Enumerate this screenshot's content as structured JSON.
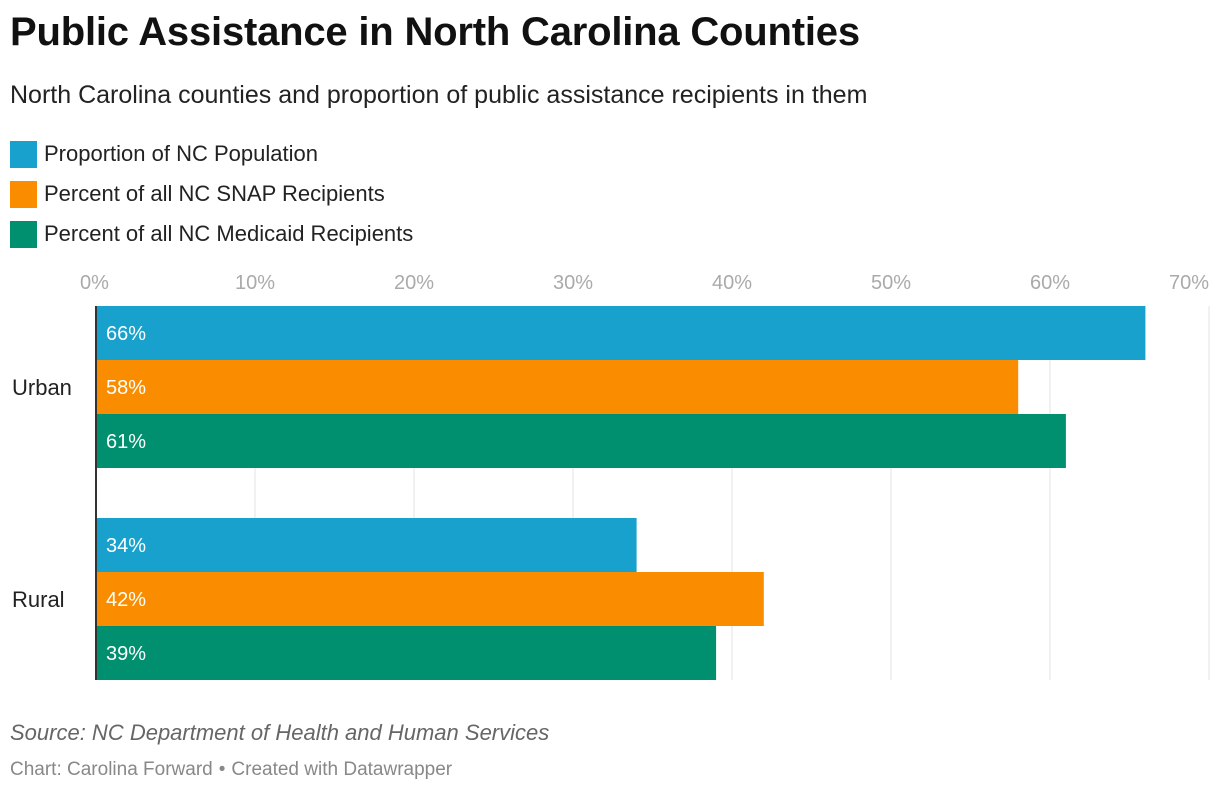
{
  "header": {
    "title": "Public Assistance in North Carolina Counties",
    "subtitle": "North Carolina counties and proportion of public assistance recipients in them"
  },
  "chart_data": {
    "type": "bar",
    "orientation": "horizontal",
    "title": "Public Assistance in North Carolina Counties",
    "subtitle": "North Carolina counties and proportion of public assistance recipients in them",
    "categories": [
      "Urban",
      "Rural"
    ],
    "series": [
      {
        "name": "Proportion of NC Population",
        "color": "#18a1cd",
        "values": [
          66,
          34
        ],
        "labels": [
          "66%",
          "34%"
        ]
      },
      {
        "name": "Percent of all NC SNAP Recipients",
        "color": "#fa8c00",
        "values": [
          58,
          42
        ],
        "labels": [
          "58%",
          "42%"
        ]
      },
      {
        "name": "Percent of all NC Medicaid Recipients",
        "color": "#009070",
        "values": [
          61,
          39
        ],
        "labels": [
          "61%",
          "39%"
        ]
      }
    ],
    "xlim": [
      0,
      70
    ],
    "xticks": [
      0,
      10,
      20,
      30,
      40,
      50,
      60,
      70
    ],
    "xtick_labels": [
      "0%",
      "10%",
      "20%",
      "30%",
      "40%",
      "50%",
      "60%",
      "70%"
    ],
    "xlabel": "",
    "ylabel": "",
    "grid": true,
    "legend_position": "top-left"
  },
  "footer": {
    "source": "Source: NC Department of Health and Human Services",
    "chart_by": "Chart: Carolina Forward",
    "separator": "•",
    "created_with": "Created with Datawrapper"
  }
}
